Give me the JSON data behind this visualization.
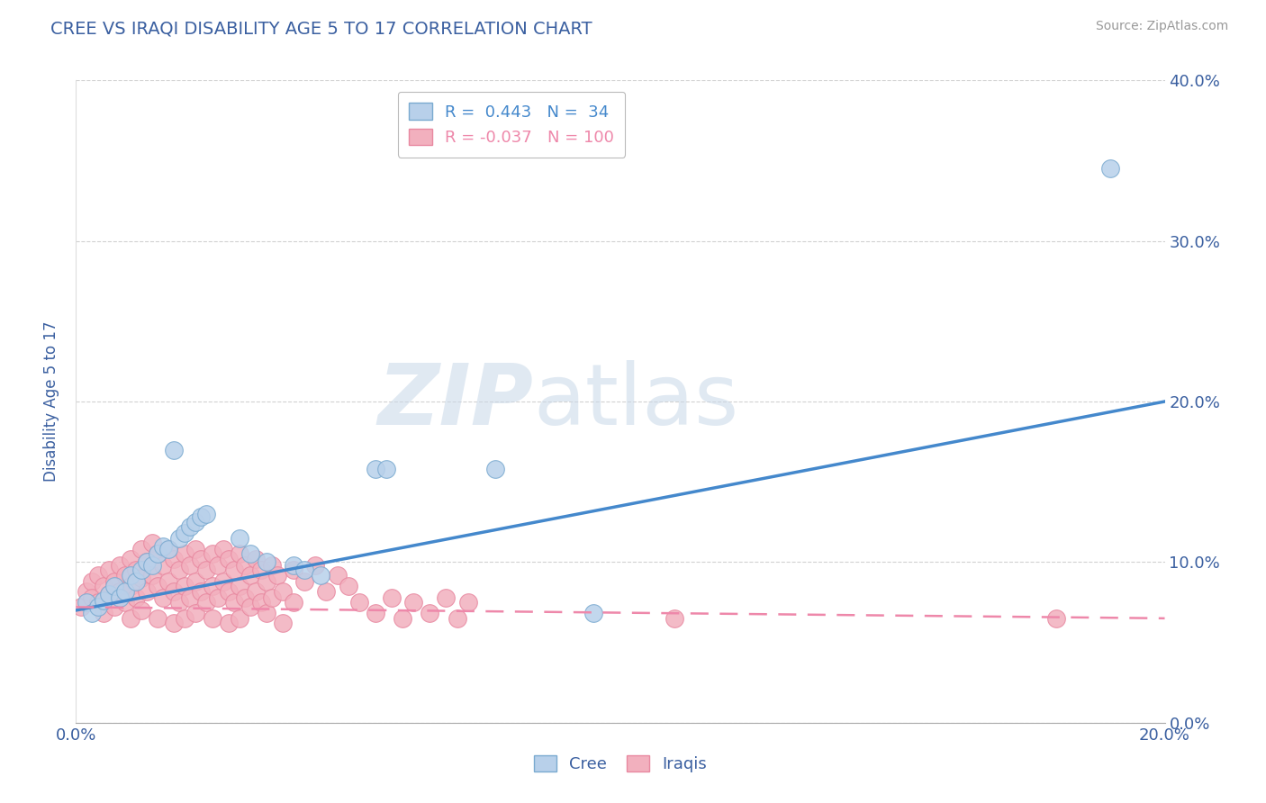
{
  "title": "CREE VS IRAQI DISABILITY AGE 5 TO 17 CORRELATION CHART",
  "source_text": "Source: ZipAtlas.com",
  "ylabel": "Disability Age 5 to 17",
  "xlim": [
    0.0,
    0.2
  ],
  "ylim": [
    0.0,
    0.4
  ],
  "xticks": [
    0.0,
    0.04,
    0.08,
    0.12,
    0.16,
    0.2
  ],
  "yticks": [
    0.0,
    0.1,
    0.2,
    0.3,
    0.4
  ],
  "xtick_labels": [
    "0.0%",
    "",
    "",
    "",
    "",
    "20.0%"
  ],
  "ytick_labels_right": [
    "0.0%",
    "10.0%",
    "20.0%",
    "30.0%",
    "40.0%"
  ],
  "background_color": "#ffffff",
  "grid_color": "#cccccc",
  "title_color": "#3a5fa0",
  "axis_label_color": "#3a5fa0",
  "tick_color": "#3a5fa0",
  "source_color": "#999999",
  "watermark_zip": "ZIP",
  "watermark_atlas": "atlas",
  "cree_color": "#b8d0ea",
  "iraqi_color": "#f2b0be",
  "cree_edge_color": "#7aaad0",
  "iraqi_edge_color": "#e888a0",
  "cree_line_color": "#4488cc",
  "iraqi_line_color": "#ee88aa",
  "cree_R": 0.443,
  "cree_N": 34,
  "iraqi_R": -0.037,
  "iraqi_N": 100,
  "cree_line_x": [
    0.0,
    0.2
  ],
  "cree_line_y": [
    0.07,
    0.2
  ],
  "iraqi_line_x": [
    0.0,
    0.2
  ],
  "iraqi_line_y": [
    0.072,
    0.065
  ],
  "cree_scatter": [
    [
      0.002,
      0.075
    ],
    [
      0.003,
      0.068
    ],
    [
      0.004,
      0.072
    ],
    [
      0.005,
      0.076
    ],
    [
      0.006,
      0.08
    ],
    [
      0.007,
      0.085
    ],
    [
      0.008,
      0.078
    ],
    [
      0.009,
      0.082
    ],
    [
      0.01,
      0.092
    ],
    [
      0.011,
      0.088
    ],
    [
      0.012,
      0.095
    ],
    [
      0.013,
      0.1
    ],
    [
      0.014,
      0.098
    ],
    [
      0.015,
      0.105
    ],
    [
      0.016,
      0.11
    ],
    [
      0.017,
      0.108
    ],
    [
      0.018,
      0.17
    ],
    [
      0.019,
      0.115
    ],
    [
      0.02,
      0.118
    ],
    [
      0.021,
      0.122
    ],
    [
      0.022,
      0.125
    ],
    [
      0.023,
      0.128
    ],
    [
      0.024,
      0.13
    ],
    [
      0.03,
      0.115
    ],
    [
      0.032,
      0.105
    ],
    [
      0.035,
      0.1
    ],
    [
      0.04,
      0.098
    ],
    [
      0.042,
      0.095
    ],
    [
      0.045,
      0.092
    ],
    [
      0.055,
      0.158
    ],
    [
      0.057,
      0.158
    ],
    [
      0.077,
      0.158
    ],
    [
      0.095,
      0.068
    ],
    [
      0.19,
      0.345
    ]
  ],
  "iraqi_scatter": [
    [
      0.001,
      0.072
    ],
    [
      0.002,
      0.082
    ],
    [
      0.003,
      0.088
    ],
    [
      0.003,
      0.078
    ],
    [
      0.004,
      0.092
    ],
    [
      0.004,
      0.075
    ],
    [
      0.005,
      0.085
    ],
    [
      0.005,
      0.068
    ],
    [
      0.006,
      0.095
    ],
    [
      0.006,
      0.08
    ],
    [
      0.007,
      0.088
    ],
    [
      0.007,
      0.072
    ],
    [
      0.008,
      0.098
    ],
    [
      0.008,
      0.082
    ],
    [
      0.009,
      0.092
    ],
    [
      0.009,
      0.075
    ],
    [
      0.01,
      0.102
    ],
    [
      0.01,
      0.085
    ],
    [
      0.01,
      0.065
    ],
    [
      0.011,
      0.095
    ],
    [
      0.011,
      0.078
    ],
    [
      0.012,
      0.108
    ],
    [
      0.012,
      0.09
    ],
    [
      0.012,
      0.07
    ],
    [
      0.013,
      0.1
    ],
    [
      0.013,
      0.082
    ],
    [
      0.014,
      0.112
    ],
    [
      0.014,
      0.092
    ],
    [
      0.015,
      0.105
    ],
    [
      0.015,
      0.085
    ],
    [
      0.015,
      0.065
    ],
    [
      0.016,
      0.098
    ],
    [
      0.016,
      0.078
    ],
    [
      0.017,
      0.108
    ],
    [
      0.017,
      0.088
    ],
    [
      0.018,
      0.102
    ],
    [
      0.018,
      0.082
    ],
    [
      0.018,
      0.062
    ],
    [
      0.019,
      0.095
    ],
    [
      0.019,
      0.075
    ],
    [
      0.02,
      0.105
    ],
    [
      0.02,
      0.085
    ],
    [
      0.02,
      0.065
    ],
    [
      0.021,
      0.098
    ],
    [
      0.021,
      0.078
    ],
    [
      0.022,
      0.108
    ],
    [
      0.022,
      0.088
    ],
    [
      0.022,
      0.068
    ],
    [
      0.023,
      0.102
    ],
    [
      0.023,
      0.082
    ],
    [
      0.024,
      0.095
    ],
    [
      0.024,
      0.075
    ],
    [
      0.025,
      0.105
    ],
    [
      0.025,
      0.085
    ],
    [
      0.025,
      0.065
    ],
    [
      0.026,
      0.098
    ],
    [
      0.026,
      0.078
    ],
    [
      0.027,
      0.108
    ],
    [
      0.027,
      0.088
    ],
    [
      0.028,
      0.102
    ],
    [
      0.028,
      0.082
    ],
    [
      0.028,
      0.062
    ],
    [
      0.029,
      0.095
    ],
    [
      0.029,
      0.075
    ],
    [
      0.03,
      0.105
    ],
    [
      0.03,
      0.085
    ],
    [
      0.03,
      0.065
    ],
    [
      0.031,
      0.098
    ],
    [
      0.031,
      0.078
    ],
    [
      0.032,
      0.092
    ],
    [
      0.032,
      0.072
    ],
    [
      0.033,
      0.102
    ],
    [
      0.033,
      0.082
    ],
    [
      0.034,
      0.095
    ],
    [
      0.034,
      0.075
    ],
    [
      0.035,
      0.088
    ],
    [
      0.035,
      0.068
    ],
    [
      0.036,
      0.098
    ],
    [
      0.036,
      0.078
    ],
    [
      0.037,
      0.092
    ],
    [
      0.038,
      0.082
    ],
    [
      0.038,
      0.062
    ],
    [
      0.04,
      0.095
    ],
    [
      0.04,
      0.075
    ],
    [
      0.042,
      0.088
    ],
    [
      0.044,
      0.098
    ],
    [
      0.046,
      0.082
    ],
    [
      0.048,
      0.092
    ],
    [
      0.05,
      0.085
    ],
    [
      0.052,
      0.075
    ],
    [
      0.055,
      0.068
    ],
    [
      0.058,
      0.078
    ],
    [
      0.06,
      0.065
    ],
    [
      0.062,
      0.075
    ],
    [
      0.065,
      0.068
    ],
    [
      0.068,
      0.078
    ],
    [
      0.07,
      0.065
    ],
    [
      0.072,
      0.075
    ],
    [
      0.11,
      0.065
    ],
    [
      0.18,
      0.065
    ]
  ]
}
